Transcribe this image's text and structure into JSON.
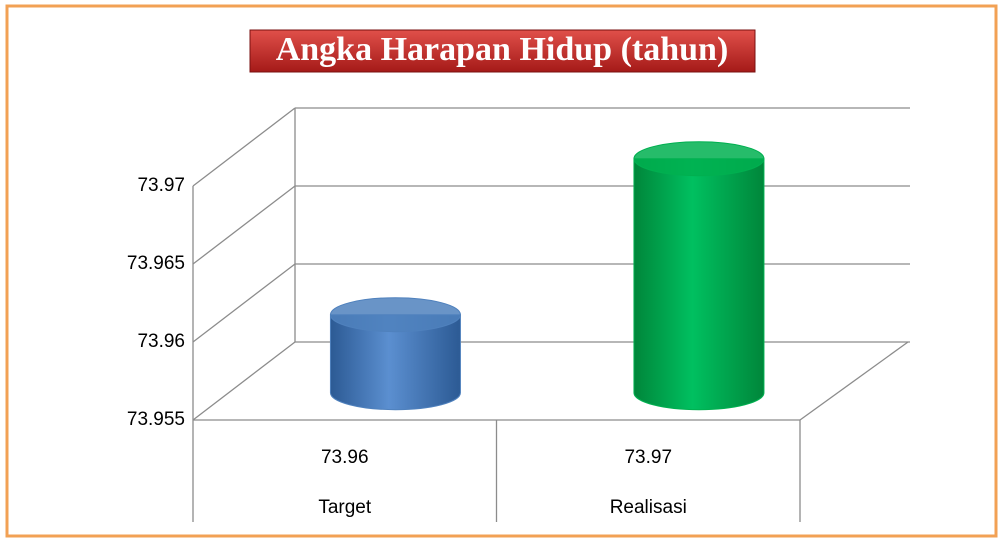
{
  "chart_data": {
    "type": "bar3d",
    "title": "Angka Harapan Hidup (tahun)",
    "categories": [
      "Target",
      "Realisasi"
    ],
    "series": [
      {
        "values": [
          73.96,
          73.97
        ],
        "colors": [
          "#4f81bd",
          "#00b050"
        ]
      }
    ],
    "ylim": [
      73.955,
      73.97
    ],
    "yticks": [
      73.955,
      73.96,
      73.965,
      73.97
    ],
    "grid": true,
    "data_table": true
  }
}
